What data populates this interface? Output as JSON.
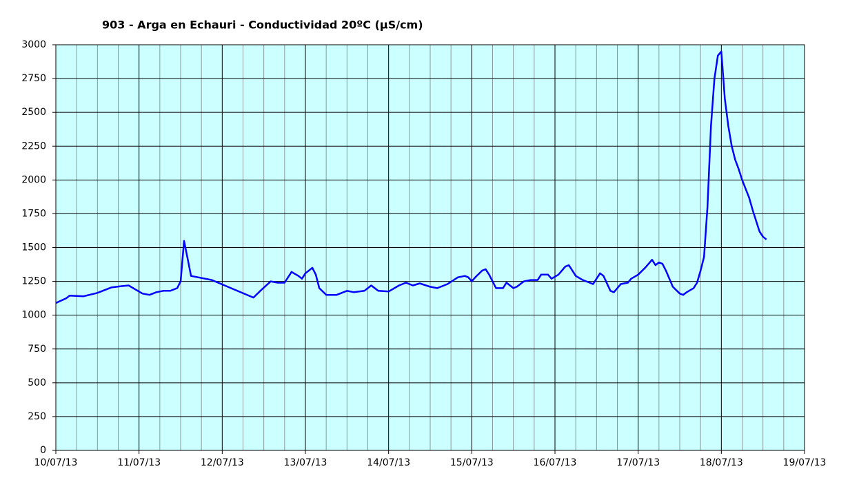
{
  "chart_data": {
    "type": "line",
    "title": "903 - Arga en Echauri - Conductividad 20ºC (µS/cm)",
    "x": [
      "2013-07-10T00:00",
      "2013-07-10T03:00",
      "2013-07-10T04:00",
      "2013-07-10T08:00",
      "2013-07-10T12:00",
      "2013-07-10T16:00",
      "2013-07-10T19:00",
      "2013-07-10T21:00",
      "2013-07-10T23:00",
      "2013-07-11T01:00",
      "2013-07-11T03:00",
      "2013-07-11T05:00",
      "2013-07-11T07:00",
      "2013-07-11T09:00",
      "2013-07-11T11:00",
      "2013-07-11T12:00",
      "2013-07-11T13:00",
      "2013-07-11T14:00",
      "2013-07-11T15:00",
      "2013-07-11T21:00",
      "2013-07-12T03:00",
      "2013-07-12T09:00",
      "2013-07-12T11:00",
      "2013-07-12T14:00",
      "2013-07-12T16:00",
      "2013-07-12T18:00",
      "2013-07-12T20:00",
      "2013-07-12T22:00",
      "2013-07-12T23:00",
      "2013-07-13T00:00",
      "2013-07-13T02:00",
      "2013-07-13T03:00",
      "2013-07-13T04:00",
      "2013-07-13T06:00",
      "2013-07-13T09:00",
      "2013-07-13T12:00",
      "2013-07-13T14:00",
      "2013-07-13T17:00",
      "2013-07-13T19:00",
      "2013-07-13T21:00",
      "2013-07-14T00:00",
      "2013-07-14T03:00",
      "2013-07-14T05:00",
      "2013-07-14T07:00",
      "2013-07-14T09:00",
      "2013-07-14T12:00",
      "2013-07-14T14:00",
      "2013-07-14T17:00",
      "2013-07-14T20:00",
      "2013-07-14T22:00",
      "2013-07-14T23:00",
      "2013-07-15T00:00",
      "2013-07-15T01:00",
      "2013-07-15T03:00",
      "2013-07-15T04:00",
      "2013-07-15T05:00",
      "2013-07-15T06:00",
      "2013-07-15T07:00",
      "2013-07-15T09:00",
      "2013-07-15T10:00",
      "2013-07-15T12:00",
      "2013-07-15T13:00",
      "2013-07-15T15:00",
      "2013-07-15T17:00",
      "2013-07-15T19:00",
      "2013-07-15T20:00",
      "2013-07-15T22:00",
      "2013-07-15T23:00",
      "2013-07-16T01:00",
      "2013-07-16T03:00",
      "2013-07-16T04:00",
      "2013-07-16T06:00",
      "2013-07-16T08:00",
      "2013-07-16T10:00",
      "2013-07-16T11:00",
      "2013-07-16T12:00",
      "2013-07-16T13:00",
      "2013-07-16T14:00",
      "2013-07-16T16:00",
      "2013-07-16T17:00",
      "2013-07-16T19:00",
      "2013-07-16T21:00",
      "2013-07-16T22:00",
      "2013-07-17T00:00",
      "2013-07-17T02:00",
      "2013-07-17T03:00",
      "2013-07-17T04:00",
      "2013-07-17T05:00",
      "2013-07-17T06:00",
      "2013-07-17T07:00",
      "2013-07-17T08:00",
      "2013-07-17T10:00",
      "2013-07-17T12:00",
      "2013-07-17T13:00",
      "2013-07-17T14:00",
      "2013-07-17T16:00",
      "2013-07-17T17:00",
      "2013-07-17T18:00",
      "2013-07-17T19:00",
      "2013-07-17T20:00",
      "2013-07-17T21:00",
      "2013-07-17T22:00",
      "2013-07-17T23:00",
      "2013-07-18T00:00",
      "2013-07-18T01:00",
      "2013-07-18T02:00",
      "2013-07-18T03:00",
      "2013-07-18T04:00",
      "2013-07-18T05:00",
      "2013-07-18T06:00",
      "2013-07-18T08:00",
      "2013-07-18T09:00",
      "2013-07-18T10:00",
      "2013-07-18T11:00",
      "2013-07-18T12:00",
      "2013-07-18T13:00"
    ],
    "series": [
      {
        "color": "#0000ff",
        "values": [
          1090,
          1125,
          1145,
          1140,
          1165,
          1205,
          1215,
          1220,
          1190,
          1160,
          1150,
          1170,
          1180,
          1180,
          1200,
          1250,
          1550,
          1420,
          1290,
          1260,
          1195,
          1130,
          1180,
          1250,
          1240,
          1240,
          1320,
          1290,
          1270,
          1310,
          1350,
          1300,
          1200,
          1150,
          1150,
          1180,
          1170,
          1180,
          1220,
          1180,
          1175,
          1220,
          1240,
          1220,
          1235,
          1210,
          1200,
          1230,
          1280,
          1290,
          1280,
          1250,
          1280,
          1330,
          1340,
          1300,
          1250,
          1200,
          1200,
          1240,
          1200,
          1210,
          1250,
          1260,
          1260,
          1300,
          1300,
          1270,
          1300,
          1360,
          1370,
          1290,
          1260,
          1240,
          1230,
          1270,
          1310,
          1290,
          1180,
          1170,
          1230,
          1240,
          1270,
          1300,
          1350,
          1380,
          1410,
          1370,
          1390,
          1380,
          1330,
          1210,
          1160,
          1150,
          1170,
          1200,
          1240,
          1330,
          1430,
          1800,
          2400,
          2750,
          2920,
          2950,
          2600,
          2400,
          2250,
          2150,
          2080,
          2000,
          1870,
          1780,
          1700,
          1620,
          1580,
          1560
        ]
      }
    ],
    "xlim": [
      "2013-07-10",
      "2013-07-19"
    ],
    "xticks": [
      {
        "value": "2013-07-10",
        "label": "10/07/13"
      },
      {
        "value": "2013-07-11",
        "label": "11/07/13"
      },
      {
        "value": "2013-07-12",
        "label": "12/07/13"
      },
      {
        "value": "2013-07-13",
        "label": "13/07/13"
      },
      {
        "value": "2013-07-14",
        "label": "14/07/13"
      },
      {
        "value": "2013-07-15",
        "label": "15/07/13"
      },
      {
        "value": "2013-07-16",
        "label": "16/07/13"
      },
      {
        "value": "2013-07-17",
        "label": "17/07/13"
      },
      {
        "value": "2013-07-18",
        "label": "18/07/13"
      },
      {
        "value": "2013-07-19",
        "label": "19/07/13"
      }
    ],
    "ylim": [
      0,
      3000
    ],
    "yticks": [
      0,
      250,
      500,
      750,
      1000,
      1250,
      1500,
      1750,
      2000,
      2250,
      2500,
      2750,
      3000
    ],
    "grid": true,
    "background": "#ccffff"
  }
}
